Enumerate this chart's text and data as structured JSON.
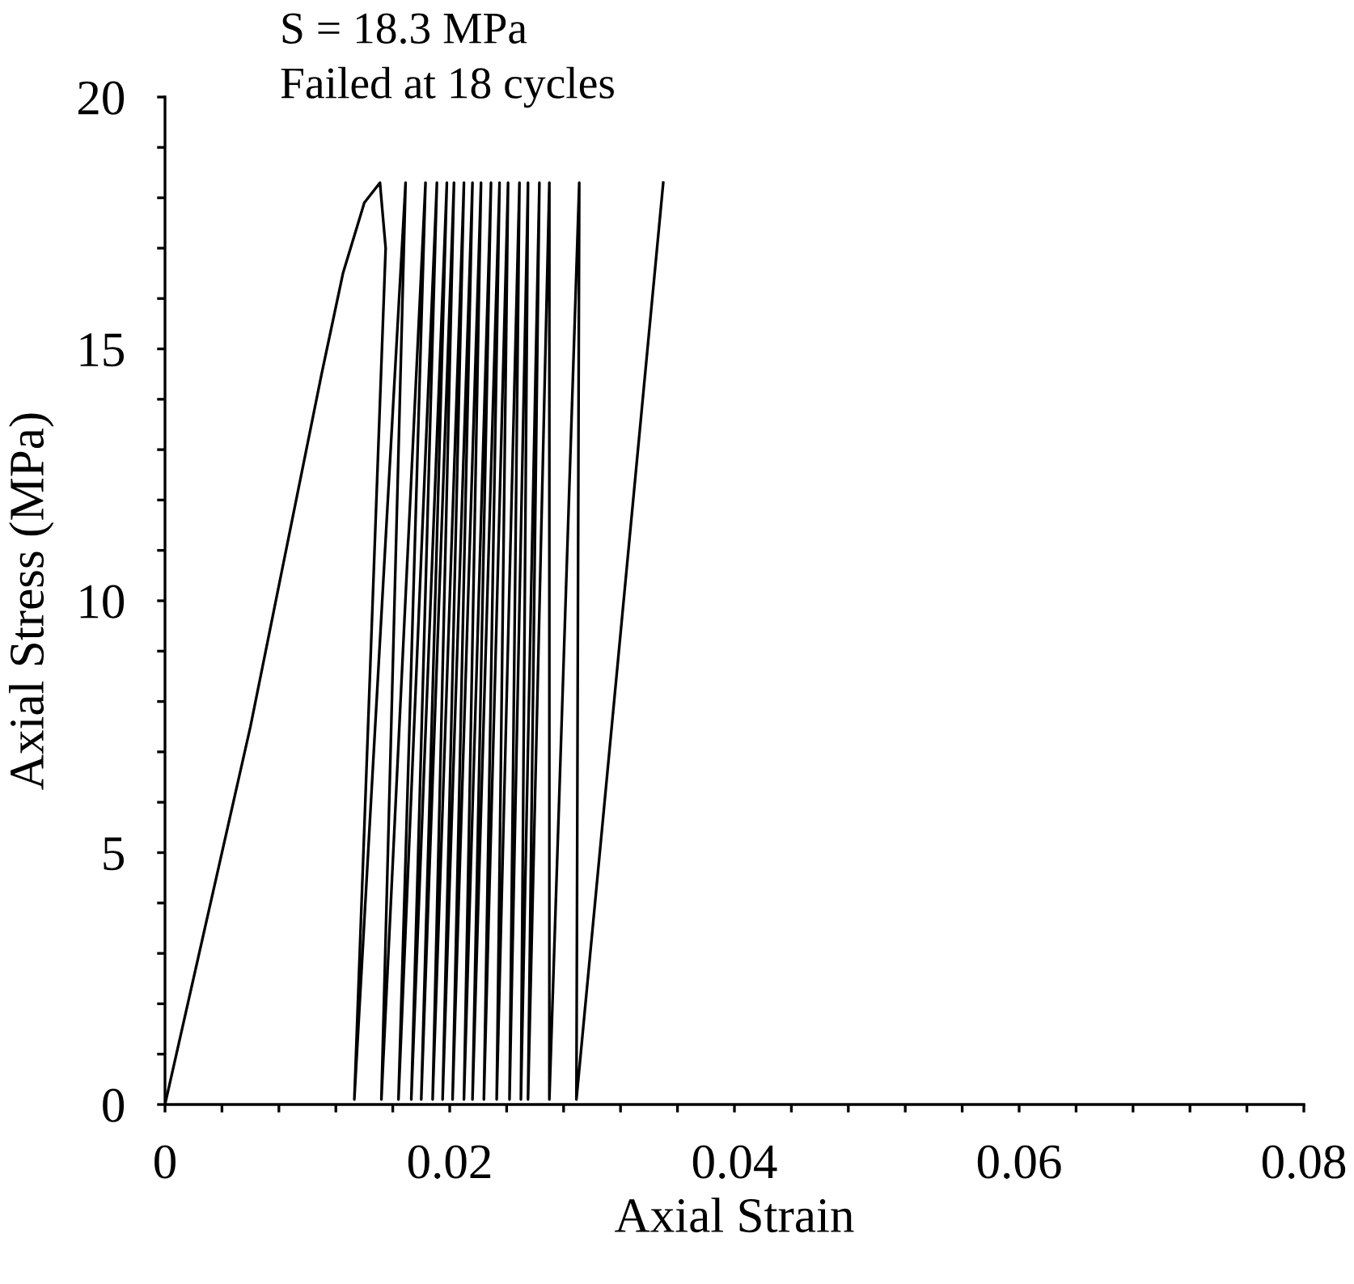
{
  "chart_data": {
    "type": "line",
    "xlabel": "Axial Strain",
    "ylabel": "Axial Stress (MPa)",
    "annotations": [
      "S = 18.3 MPa",
      "Failed at 18 cycles"
    ],
    "xlim": [
      0,
      0.08
    ],
    "ylim": [
      0,
      20
    ],
    "xticks": [
      0,
      {
        "value": 0.004,
        "label": null
      },
      {
        "value": 0.008,
        "label": null
      },
      {
        "value": 0.012,
        "label": null
      },
      {
        "value": 0.016,
        "label": null
      },
      0.02,
      {
        "value": 0.024,
        "label": null
      },
      {
        "value": 0.028,
        "label": null
      },
      {
        "value": 0.032,
        "label": null
      },
      {
        "value": 0.036,
        "label": null
      },
      0.04,
      {
        "value": 0.044,
        "label": null
      },
      {
        "value": 0.048,
        "label": null
      },
      {
        "value": 0.052,
        "label": null
      },
      {
        "value": 0.056,
        "label": null
      },
      0.06,
      {
        "value": 0.064,
        "label": null
      },
      {
        "value": 0.068,
        "label": null
      },
      {
        "value": 0.072,
        "label": null
      },
      {
        "value": 0.076,
        "label": null
      },
      0.08
    ],
    "yticks": [
      0,
      {
        "value": 1,
        "label": null
      },
      {
        "value": 2,
        "label": null
      },
      {
        "value": 3,
        "label": null
      },
      {
        "value": 4,
        "label": null
      },
      5,
      {
        "value": 6,
        "label": null
      },
      {
        "value": 7,
        "label": null
      },
      {
        "value": 8,
        "label": null
      },
      {
        "value": 9,
        "label": null
      },
      10,
      {
        "value": 11,
        "label": null
      },
      {
        "value": 12,
        "label": null
      },
      {
        "value": 13,
        "label": null
      },
      {
        "value": 14,
        "label": null
      },
      15,
      {
        "value": 16,
        "label": null
      },
      {
        "value": 17,
        "label": null
      },
      {
        "value": 18,
        "label": null
      },
      {
        "value": 19,
        "label": null
      },
      20
    ],
    "grid": false,
    "legend": false,
    "marker": "none",
    "line_style": "solid",
    "series": [
      {
        "color": "#000000",
        "x": [
          0,
          0.006,
          0.011,
          0.0125,
          0.014,
          0.0151,
          0.0155,
          0.0133,
          0.0169,
          0.0152,
          0.0183,
          0.0164,
          0.0191,
          0.0173,
          0.0198,
          0.018,
          0.0203,
          0.0188,
          0.021,
          0.0195,
          0.0216,
          0.0202,
          0.0222,
          0.021,
          0.0229,
          0.0216,
          0.0235,
          0.0224,
          0.0241,
          0.0233,
          0.0249,
          0.0242,
          0.0255,
          0.025,
          0.0263,
          0.0255,
          0.027,
          0.027,
          0.0291,
          0.0289,
          0.035
        ],
        "values": [
          0,
          7.5,
          14.5,
          16.5,
          17.9,
          18.3,
          17.0,
          0.1,
          18.3,
          0.1,
          18.3,
          0.1,
          18.3,
          0.1,
          18.3,
          0.1,
          18.3,
          0.1,
          18.3,
          0.1,
          18.3,
          0.1,
          18.3,
          0.1,
          18.3,
          0.1,
          18.3,
          0.1,
          18.3,
          0.1,
          18.3,
          0.1,
          18.3,
          0.1,
          18.3,
          0.1,
          18.3,
          0.1,
          18.3,
          0.1,
          18.3
        ]
      }
    ]
  }
}
